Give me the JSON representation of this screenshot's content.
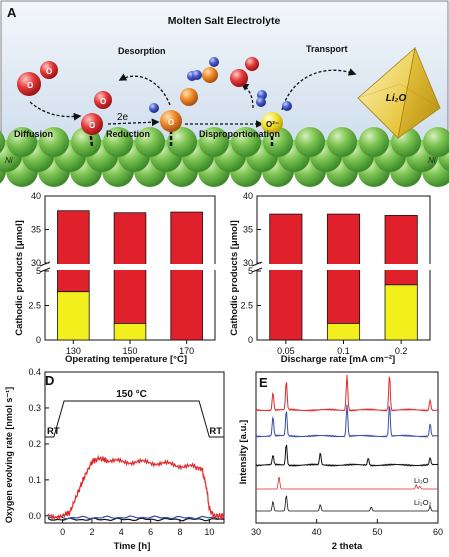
{
  "panelA": {
    "letter": "A",
    "title": "Molten Salt Electrolyte",
    "labels": {
      "desorption": "Desorption",
      "transport": "Transport",
      "diffusion": "Diffusion",
      "reduction": "Reduction",
      "disproportionation": "Disproportionation",
      "two_e": "2e",
      "li2o": "Li₂O",
      "ni_left": "Ni",
      "ni_right": "Ni"
    }
  },
  "colors": {
    "li2o2": "#e0202a",
    "li2o": "#f2ef1c",
    "red_trace": "#e02a2a",
    "blue_trace": "#3a4ea8",
    "black_trace": "#111111",
    "sky": "#dce7f2",
    "ni_green": "#6fc14a"
  },
  "chart_data": [
    {
      "panel": "B",
      "type": "bar",
      "stacked": true,
      "xlabel": "Operating temperature [°C]",
      "ylabel": "Cathodic products [μmol]",
      "categories": [
        "130",
        "150",
        "170"
      ],
      "axis_break": [
        5,
        30
      ],
      "ylim": [
        0,
        40
      ],
      "yticks_lower": [
        "0",
        "2.5",
        "5"
      ],
      "yticks_upper": [
        "30",
        "35",
        "40"
      ],
      "series": [
        {
          "color": "yellow",
          "values": [
            3.5,
            1.2,
            0
          ]
        },
        {
          "color": "red",
          "values": [
            34.3,
            36.3,
            37.6
          ]
        }
      ],
      "totals": [
        37.8,
        37.5,
        37.6
      ]
    },
    {
      "panel": "C",
      "type": "bar",
      "stacked": true,
      "xlabel": "Discharge rate [mA cm⁻²]",
      "ylabel": "Cathodic products [μmol]",
      "categories": [
        "0.05",
        "0.1",
        "0.2"
      ],
      "axis_break": [
        5,
        30
      ],
      "ylim": [
        0,
        40
      ],
      "yticks_lower": [
        "0",
        "2.5",
        "5"
      ],
      "yticks_upper": [
        "30",
        "35",
        "40"
      ],
      "series": [
        {
          "color": "yellow",
          "values": [
            0,
            1.2,
            4.0
          ]
        },
        {
          "color": "red",
          "values": [
            37.3,
            36.1,
            33.1
          ]
        }
      ],
      "totals": [
        37.3,
        37.3,
        37.1
      ]
    },
    {
      "panel": "D",
      "type": "line",
      "xlabel": "Time [h]",
      "ylabel": "Oxygen evolving rate [nmol s⁻¹]",
      "xlim": [
        -1.2,
        11
      ],
      "ylim": [
        -0.02,
        0.4
      ],
      "xticks": [
        "0",
        "2",
        "4",
        "6",
        "8",
        "10"
      ],
      "yticks": [
        "0.0",
        "0.1",
        "0.2",
        "0.3",
        "0.4"
      ],
      "temperature_profile": {
        "low_label": "RT",
        "high_label": "150 °C",
        "ramp_up": [
          -0.6,
          0.1
        ],
        "ramp_down": [
          9.3,
          10.0
        ]
      },
      "series": [
        {
          "color": "red",
          "x": [
            -1,
            0,
            0.5,
            1,
            1.5,
            2,
            2.5,
            3,
            4,
            5,
            6,
            7,
            8,
            9,
            9.5,
            9.8,
            10,
            10.3,
            11
          ],
          "y": [
            0.0,
            0.0,
            0.01,
            0.06,
            0.11,
            0.15,
            0.16,
            0.155,
            0.15,
            0.15,
            0.148,
            0.145,
            0.14,
            0.135,
            0.13,
            0.08,
            0.02,
            0.0,
            0.0
          ]
        },
        {
          "color": "blue",
          "x": [
            -1,
            2,
            5,
            8,
            11
          ],
          "y": [
            -0.005,
            -0.005,
            -0.004,
            -0.005,
            -0.005
          ]
        },
        {
          "color": "black",
          "x": [
            -1,
            2,
            5,
            8,
            11
          ],
          "y": [
            -0.01,
            -0.01,
            -0.01,
            -0.01,
            -0.01
          ]
        }
      ]
    },
    {
      "panel": "E",
      "type": "line",
      "xlabel": "2 theta",
      "ylabel": "Intensity [a.u.]",
      "xlim": [
        30,
        60
      ],
      "xticks": [
        "30",
        "40",
        "50",
        "60"
      ],
      "reference_labels": [
        "Li₂O",
        "Li₂O₂"
      ],
      "series": [
        {
          "color": "red",
          "peaks": [
            [
              32.8,
              0.5
            ],
            [
              35.0,
              0.8
            ],
            [
              45.0,
              1.0
            ],
            [
              52.0,
              1.0
            ],
            [
              58.7,
              0.3
            ]
          ]
        },
        {
          "color": "blue",
          "peaks": [
            [
              32.8,
              0.6
            ],
            [
              35.0,
              0.8
            ],
            [
              45.0,
              1.0
            ],
            [
              52.0,
              1.0
            ],
            [
              58.7,
              0.4
            ]
          ]
        },
        {
          "color": "black",
          "peaks": [
            [
              32.8,
              0.4
            ],
            [
              35.0,
              0.9
            ],
            [
              40.6,
              0.5
            ],
            [
              48.5,
              0.3
            ],
            [
              58.7,
              0.3
            ]
          ]
        },
        {
          "color": "red",
          "name": "Li₂O",
          "peaks": [
            [
              33.8,
              0.9
            ],
            [
              56.4,
              0.3
            ],
            [
              57.0,
              0.2
            ]
          ]
        },
        {
          "color": "black",
          "name": "Li₂O₂",
          "peaks": [
            [
              32.8,
              0.6
            ],
            [
              35.0,
              1.0
            ],
            [
              40.6,
              0.4
            ],
            [
              49.0,
              0.25
            ],
            [
              58.7,
              0.3
            ]
          ]
        }
      ]
    }
  ],
  "panels": {
    "B": "B",
    "C": "C",
    "D": "D",
    "E": "E"
  }
}
